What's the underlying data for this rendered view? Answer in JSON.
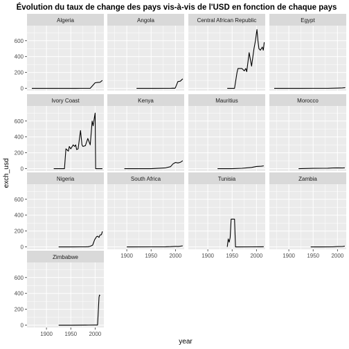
{
  "chart_data": {
    "type": "line",
    "title": "Évolution du taux de change des pays vis-à-vis de l'USD en fonction de chaque pays",
    "xlabel": "year",
    "ylabel": "exch_usd",
    "xlim": [
      1860,
      2018
    ],
    "ylim": [
      -30,
      790
    ],
    "x_ticks": [
      1900,
      1950,
      2000
    ],
    "y_ticks": [
      0,
      200,
      400,
      600
    ],
    "facet_layout": {
      "columns": 4,
      "rows": 4
    },
    "panel_background": "#ebebeb",
    "strip_background": "#d9d9d9",
    "grid_color": "#ffffff",
    "line_color": "#000000",
    "facets": [
      {
        "name": "Algeria",
        "points": [
          [
            1870,
            0
          ],
          [
            1920,
            0
          ],
          [
            1960,
            0.05
          ],
          [
            1970,
            0.2
          ],
          [
            1990,
            0.5
          ],
          [
            2000,
            70
          ],
          [
            2005,
            74
          ],
          [
            2010,
            76
          ],
          [
            2015,
            100
          ]
        ]
      },
      {
        "name": "Angola",
        "points": [
          [
            1920,
            0
          ],
          [
            1950,
            0
          ],
          [
            1990,
            0.2
          ],
          [
            1995,
            2
          ],
          [
            1999,
            1
          ],
          [
            2000,
            10
          ],
          [
            2005,
            85
          ],
          [
            2010,
            90
          ],
          [
            2015,
            120
          ]
        ]
      },
      {
        "name": "Central African Republic",
        "points": [
          [
            1940,
            0
          ],
          [
            1955,
            0
          ],
          [
            1960,
            200
          ],
          [
            1962,
            250
          ],
          [
            1970,
            250
          ],
          [
            1975,
            220
          ],
          [
            1978,
            250
          ],
          [
            1980,
            210
          ],
          [
            1985,
            450
          ],
          [
            1990,
            280
          ],
          [
            1995,
            500
          ],
          [
            1998,
            600
          ],
          [
            2000,
            700
          ],
          [
            2001,
            740
          ],
          [
            2003,
            600
          ],
          [
            2005,
            500
          ],
          [
            2008,
            480
          ],
          [
            2010,
            500
          ],
          [
            2012,
            520
          ],
          [
            2014,
            480
          ],
          [
            2016,
            580
          ]
        ]
      },
      {
        "name": "Egypt",
        "points": [
          [
            1870,
            0
          ],
          [
            1920,
            0
          ],
          [
            1950,
            0.4
          ],
          [
            1980,
            0.8
          ],
          [
            2000,
            3
          ],
          [
            2010,
            6
          ],
          [
            2016,
            8
          ]
        ]
      },
      {
        "name": "Ivory Coast",
        "points": [
          [
            1915,
            0
          ],
          [
            1930,
            0
          ],
          [
            1937,
            0
          ],
          [
            1940,
            250
          ],
          [
            1945,
            220
          ],
          [
            1947,
            280
          ],
          [
            1950,
            250
          ],
          [
            1955,
            300
          ],
          [
            1958,
            280
          ],
          [
            1960,
            300
          ],
          [
            1962,
            240
          ],
          [
            1965,
            250
          ],
          [
            1970,
            480
          ],
          [
            1973,
            300
          ],
          [
            1975,
            280
          ],
          [
            1980,
            290
          ],
          [
            1985,
            380
          ],
          [
            1990,
            300
          ],
          [
            1994,
            600
          ],
          [
            1996,
            540
          ],
          [
            1998,
            620
          ],
          [
            2000,
            700
          ],
          [
            2001,
            0
          ],
          [
            2015,
            0
          ]
        ]
      },
      {
        "name": "Kenya",
        "points": [
          [
            1895,
            0
          ],
          [
            1950,
            0
          ],
          [
            1970,
            7
          ],
          [
            1980,
            10
          ],
          [
            1990,
            25
          ],
          [
            1995,
            60
          ],
          [
            2000,
            78
          ],
          [
            2005,
            72
          ],
          [
            2010,
            80
          ],
          [
            2015,
            100
          ]
        ]
      },
      {
        "name": "Mauritius",
        "points": [
          [
            1920,
            0
          ],
          [
            1950,
            0
          ],
          [
            1970,
            5
          ],
          [
            1980,
            10
          ],
          [
            1990,
            15
          ],
          [
            2000,
            28
          ],
          [
            2010,
            30
          ],
          [
            2015,
            35
          ]
        ]
      },
      {
        "name": "Morocco",
        "points": [
          [
            1920,
            0
          ],
          [
            1950,
            4
          ],
          [
            1970,
            5
          ],
          [
            1980,
            6
          ],
          [
            1990,
            8
          ],
          [
            2000,
            10
          ],
          [
            2010,
            8
          ],
          [
            2015,
            10
          ]
        ]
      },
      {
        "name": "Nigeria",
        "points": [
          [
            1925,
            0
          ],
          [
            1950,
            0
          ],
          [
            1970,
            0.7
          ],
          [
            1980,
            0.6
          ],
          [
            1986,
            2
          ],
          [
            1990,
            8
          ],
          [
            1995,
            22
          ],
          [
            1999,
            90
          ],
          [
            2000,
            100
          ],
          [
            2003,
            130
          ],
          [
            2005,
            135
          ],
          [
            2008,
            120
          ],
          [
            2010,
            150
          ],
          [
            2013,
            155
          ],
          [
            2015,
            195
          ]
        ]
      },
      {
        "name": "South Africa",
        "points": [
          [
            1900,
            0
          ],
          [
            1950,
            0.7
          ],
          [
            1980,
            1
          ],
          [
            1990,
            3
          ],
          [
            2000,
            7
          ],
          [
            2005,
            6
          ],
          [
            2010,
            8
          ],
          [
            2015,
            14
          ]
        ]
      },
      {
        "name": "Tunisia",
        "points": [
          [
            1940,
            0
          ],
          [
            1942,
            100
          ],
          [
            1944,
            60
          ],
          [
            1946,
            120
          ],
          [
            1948,
            350
          ],
          [
            1955,
            350
          ],
          [
            1957,
            0
          ],
          [
            1990,
            0.9
          ],
          [
            2010,
            1.5
          ],
          [
            2015,
            2
          ]
        ]
      },
      {
        "name": "Zambia",
        "points": [
          [
            1945,
            0
          ],
          [
            1965,
            0
          ],
          [
            1990,
            0.3
          ],
          [
            2000,
            4
          ],
          [
            2010,
            5
          ],
          [
            2015,
            10
          ]
        ]
      },
      {
        "name": "Zimbabwe",
        "points": [
          [
            1925,
            0
          ],
          [
            1950,
            0
          ],
          [
            1980,
            1
          ],
          [
            2000,
            2
          ],
          [
            2005,
            2.5
          ],
          [
            2008,
            350
          ],
          [
            2009,
            380
          ],
          [
            2010,
            370
          ]
        ]
      }
    ]
  }
}
